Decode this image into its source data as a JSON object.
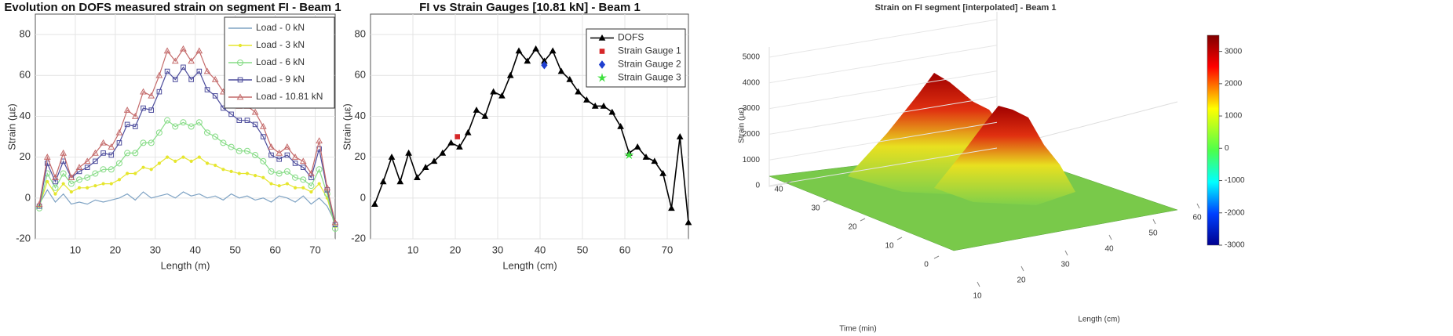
{
  "chart_data": [
    {
      "type": "line",
      "title": "Evolution on DOFS measured strain on segment FI - Beam 1",
      "xlabel": "Length (m)",
      "ylabel": "Strain (µε)",
      "x": [
        1,
        3,
        5,
        7,
        9,
        11,
        13,
        15,
        17,
        19,
        21,
        23,
        25,
        27,
        29,
        31,
        33,
        35,
        37,
        39,
        41,
        43,
        45,
        47,
        49,
        51,
        53,
        55,
        57,
        59,
        61,
        63,
        65,
        67,
        69,
        71,
        73,
        75
      ],
      "xlim": [
        0,
        75
      ],
      "ylim": [
        -20,
        90
      ],
      "xticks": [
        10,
        20,
        30,
        40,
        50,
        60,
        70
      ],
      "yticks": [
        -20,
        0,
        20,
        40,
        60,
        80
      ],
      "grid": true,
      "legend": "upper right",
      "series": [
        {
          "name": "Load - 0 kN",
          "color": "#7fa3c4",
          "marker": "none",
          "values": [
            -3,
            4,
            -2,
            2,
            -3,
            -2,
            -3,
            -1,
            -2,
            -1,
            0,
            2,
            -1,
            3,
            0,
            1,
            2,
            0,
            3,
            1,
            2,
            0,
            1,
            -1,
            2,
            0,
            1,
            -1,
            0,
            -2,
            1,
            0,
            -2,
            1,
            -3,
            0,
            -4,
            -12
          ]
        },
        {
          "name": "Load - 3 kN",
          "color": "#e6e62e",
          "marker": "dot",
          "values": [
            -4,
            8,
            2,
            7,
            3,
            5,
            5,
            6,
            7,
            7,
            9,
            12,
            12,
            15,
            14,
            17,
            20,
            18,
            20,
            18,
            20,
            17,
            16,
            14,
            13,
            12,
            12,
            11,
            10,
            7,
            6,
            7,
            5,
            5,
            3,
            7,
            0,
            -14
          ]
        },
        {
          "name": "Load - 6 kN",
          "color": "#86dc86",
          "marker": "circle",
          "values": [
            -5,
            12,
            5,
            12,
            7,
            9,
            10,
            12,
            14,
            14,
            17,
            22,
            22,
            27,
            27,
            32,
            38,
            35,
            37,
            35,
            37,
            32,
            30,
            27,
            25,
            23,
            23,
            21,
            18,
            13,
            12,
            13,
            10,
            9,
            6,
            14,
            2,
            -15
          ]
        },
        {
          "name": "Load - 9 kN",
          "color": "#4d4d9c",
          "marker": "square",
          "values": [
            -4,
            17,
            8,
            18,
            10,
            13,
            15,
            18,
            22,
            21,
            27,
            36,
            35,
            44,
            43,
            52,
            62,
            58,
            64,
            58,
            62,
            53,
            50,
            44,
            41,
            38,
            38,
            36,
            30,
            21,
            19,
            21,
            17,
            15,
            10,
            24,
            4,
            -13
          ]
        },
        {
          "name": "Load - 10.81 kN",
          "color": "#c46a6a",
          "marker": "triangle",
          "values": [
            -3,
            20,
            10,
            22,
            10,
            15,
            18,
            22,
            27,
            25,
            32,
            43,
            40,
            52,
            50,
            60,
            72,
            67,
            73,
            67,
            72,
            62,
            58,
            52,
            48,
            45,
            45,
            42,
            35,
            25,
            22,
            25,
            20,
            18,
            12,
            28,
            5,
            -12
          ]
        }
      ]
    },
    {
      "type": "line",
      "title": "FI vs Strain Gauges [10.81 kN] - Beam 1",
      "xlabel": "Length (cm)",
      "ylabel": "Strain (µε)",
      "x": [
        1,
        3,
        5,
        7,
        9,
        11,
        13,
        15,
        17,
        19,
        21,
        23,
        25,
        27,
        29,
        31,
        33,
        35,
        37,
        39,
        41,
        43,
        45,
        47,
        49,
        51,
        53,
        55,
        57,
        59,
        61,
        63,
        65,
        67,
        69,
        71,
        73,
        75
      ],
      "xlim": [
        0,
        75
      ],
      "ylim": [
        -20,
        90
      ],
      "xticks": [
        10,
        20,
        30,
        40,
        50,
        60,
        70
      ],
      "yticks": [
        -20,
        0,
        20,
        40,
        60,
        80
      ],
      "grid": true,
      "legend": "upper right",
      "series": [
        {
          "name": "DOFS",
          "color": "#000000",
          "marker": "triangle",
          "values": [
            -3,
            8,
            20,
            8,
            22,
            10,
            15,
            18,
            22,
            27,
            25,
            32,
            43,
            40,
            52,
            50,
            60,
            72,
            67,
            73,
            67,
            72,
            62,
            58,
            52,
            48,
            45,
            45,
            42,
            35,
            22,
            25,
            20,
            18,
            12,
            -5,
            30,
            -12
          ]
        },
        {
          "name": "Strain Gauge 1",
          "color": "#d62728",
          "marker": "square",
          "line": false,
          "x": [
            20.5
          ],
          "values": [
            30
          ]
        },
        {
          "name": "Strain Gauge 2",
          "color": "#1f3fd0",
          "marker": "diamond",
          "line": false,
          "x": [
            41
          ],
          "values": [
            65
          ]
        },
        {
          "name": "Strain Gauge 3",
          "color": "#3ee03e",
          "marker": "star",
          "line": false,
          "x": [
            61
          ],
          "values": [
            21
          ]
        }
      ]
    },
    {
      "type": "surface",
      "title": "Strain on FI segment [interpolated] - Beam 1",
      "xlabel": "Length (cm)",
      "ylabel": "Time (min)",
      "zlabel": "Strain (µε)",
      "xticks": [
        10,
        20,
        30,
        40,
        50,
        60
      ],
      "yticks": [
        0,
        10,
        20,
        30,
        40
      ],
      "zticks": [
        0,
        1000,
        2000,
        3000,
        4000,
        5000
      ],
      "clim": [
        -3000,
        3500
      ],
      "cticks": [
        -3000,
        -2000,
        -1000,
        0,
        1000,
        2000,
        3000
      ]
    }
  ]
}
